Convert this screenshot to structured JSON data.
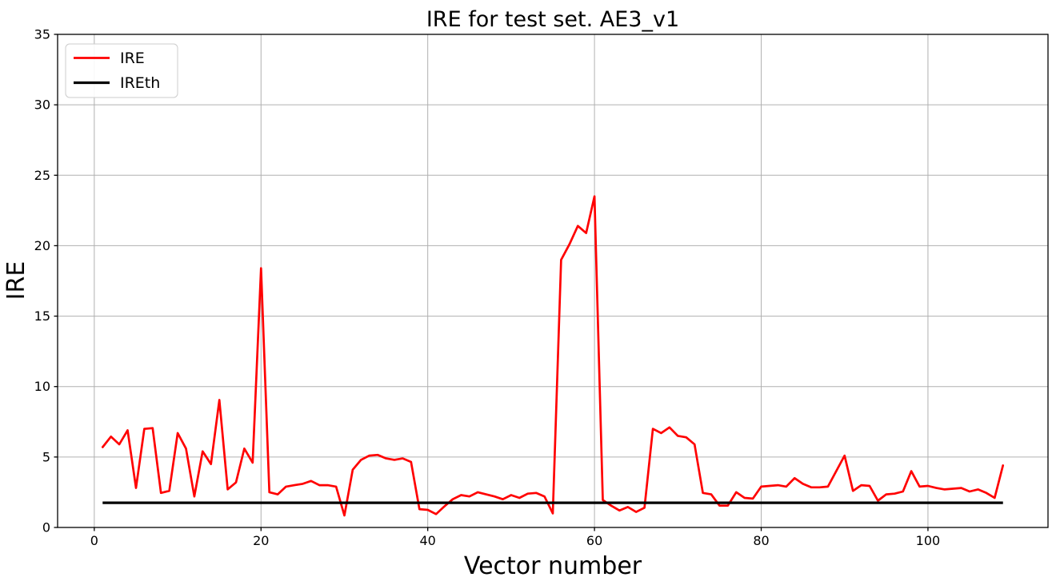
{
  "figure": {
    "background": "#ffffff"
  },
  "chart_data": {
    "type": "line",
    "title": "IRE for test set. AE3_v1",
    "xlabel": "Vector number",
    "ylabel": "IRE",
    "xlim": [
      -4.4,
      114.4
    ],
    "ylim": [
      0,
      35
    ],
    "xticks": [
      0,
      20,
      40,
      60,
      80,
      100
    ],
    "yticks": [
      0,
      5,
      10,
      15,
      20,
      25,
      30,
      35
    ],
    "grid": true,
    "grid_color": "#b0b0b0",
    "legend_position": "upper left",
    "series": [
      {
        "name": "IRE",
        "color": "#ff0000",
        "line_width": 2.7,
        "x_start": 1,
        "x_step": 1,
        "values": [
          5.7,
          6.45,
          5.9,
          6.9,
          2.8,
          7.0,
          7.05,
          2.45,
          2.6,
          6.7,
          5.6,
          2.2,
          5.4,
          4.5,
          9.05,
          2.7,
          3.2,
          5.6,
          4.6,
          18.4,
          2.5,
          2.35,
          2.9,
          3.0,
          3.1,
          3.3,
          3.0,
          3.0,
          2.9,
          0.85,
          4.1,
          4.8,
          5.1,
          5.15,
          4.9,
          4.8,
          4.9,
          4.65,
          1.3,
          1.25,
          0.95,
          1.5,
          2.0,
          2.3,
          2.2,
          2.5,
          2.35,
          2.2,
          2.0,
          2.3,
          2.1,
          2.4,
          2.45,
          2.2,
          1.0,
          19.0,
          20.1,
          21.4,
          20.9,
          23.5,
          1.95,
          1.55,
          1.2,
          1.45,
          1.1,
          1.4,
          7.0,
          6.7,
          7.1,
          6.5,
          6.4,
          5.9,
          2.45,
          2.35,
          1.55,
          1.55,
          2.5,
          2.1,
          2.05,
          2.9,
          2.95,
          3.0,
          2.9,
          3.5,
          3.1,
          2.85,
          2.85,
          2.9,
          4.0,
          5.1,
          2.6,
          3.0,
          2.95,
          1.9,
          2.35,
          2.4,
          2.55,
          4.0,
          2.9,
          2.95,
          2.8,
          2.7,
          2.75,
          2.8,
          2.55,
          2.7,
          2.45,
          2.1,
          4.4
        ]
      },
      {
        "name": "IREth",
        "color": "#000000",
        "line_width": 3.2,
        "constant_value": 1.75,
        "x_range": [
          1,
          109
        ]
      }
    ]
  },
  "legend": {
    "items": [
      {
        "label": "IRE",
        "color": "#ff0000"
      },
      {
        "label": "IREth",
        "color": "#000000"
      }
    ]
  }
}
